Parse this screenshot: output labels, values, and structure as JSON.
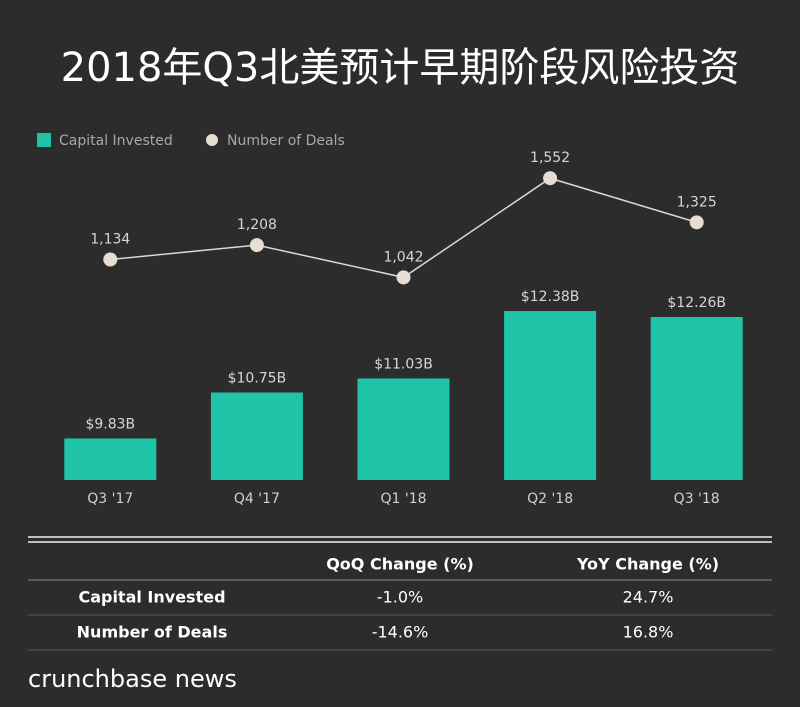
{
  "chart_data": {
    "type": "bar_line",
    "title": "2018年Q3北美预计早期阶段风险投资",
    "categories": [
      "Q3 '17",
      "Q4 '17",
      "Q1 '18",
      "Q2 '18",
      "Q3 '18"
    ],
    "series": [
      {
        "name": "Capital Invested",
        "color": "#1fc3a8",
        "type": "bar",
        "values": [
          9.83,
          10.75,
          11.03,
          12.38,
          12.26
        ],
        "value_labels": [
          "$9.83B",
          "$10.75B",
          "$11.03B",
          "$12.38B",
          "$12.26B"
        ]
      },
      {
        "name": "Number of Deals",
        "color": "#e6ddd3",
        "type": "line",
        "axis": "y2",
        "values": [
          1134,
          1208,
          1042,
          1552,
          1325
        ],
        "value_labels": [
          "1,134",
          "1,208",
          "1,042",
          "1,552",
          "1,325"
        ]
      }
    ],
    "ylim": [
      9,
      16
    ],
    "y2lim": [
      0,
      1800
    ],
    "legend": "top-left"
  },
  "table": {
    "columns": [
      "QoQ Change (%)",
      "YoY Change (%)"
    ],
    "rows": [
      {
        "label": "Capital Invested",
        "values": [
          "-1.0%",
          "24.7%"
        ]
      },
      {
        "label": "Number of Deals",
        "values": [
          "-14.6%",
          "16.8%"
        ]
      }
    ]
  },
  "footer": "crunchbase news"
}
